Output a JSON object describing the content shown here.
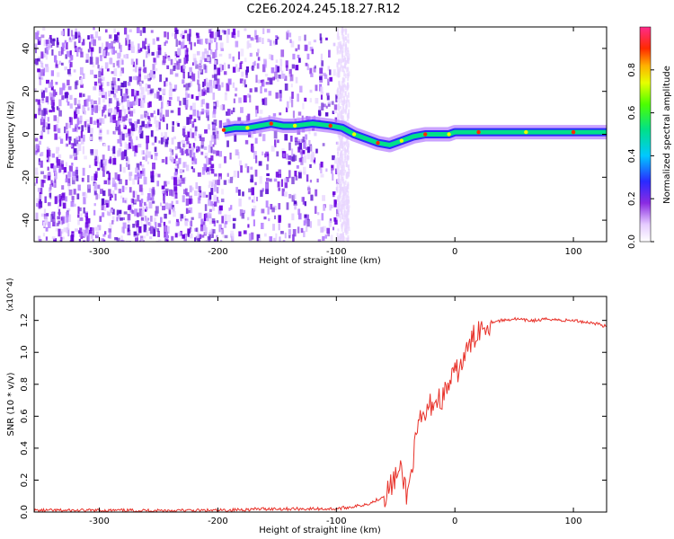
{
  "title": "C2E6.2024.245.18.27.R12",
  "chart_data": [
    {
      "type": "heatmap",
      "xlabel": "Height of straight line (km)",
      "ylabel": "Frequency (Hz)",
      "xlim": [
        -355,
        128
      ],
      "ylim": [
        -50,
        50
      ],
      "xticks": [
        -300,
        -200,
        -100,
        0,
        100
      ],
      "yticks": [
        -40,
        -20,
        0,
        20,
        40
      ],
      "colorbar": {
        "label": "Normalized spectral amplitude",
        "range": [
          0,
          1
        ],
        "ticks": [
          "0.0",
          "0.2",
          "0.4",
          "0.6",
          "0.8"
        ]
      },
      "ridge": {
        "x": [
          -195,
          -185,
          -175,
          -165,
          -155,
          -145,
          -135,
          -120,
          -105,
          -95,
          -85,
          -75,
          -65,
          -55,
          -45,
          -35,
          -25,
          -15,
          -5,
          0,
          20,
          40,
          60,
          80,
          100,
          128
        ],
        "y": [
          2,
          3,
          3,
          4,
          5,
          4,
          4,
          5,
          4,
          3,
          0,
          -2,
          -4,
          -5,
          -3,
          -1,
          0,
          0,
          0,
          1,
          1,
          1,
          1,
          1,
          1,
          1
        ]
      },
      "grid": false
    },
    {
      "type": "line",
      "xlabel": "Height of straight line (km)",
      "ylabel": "SNR (10 * v/v)",
      "yscale_note": "(x10^4)",
      "xlim": [
        -355,
        128
      ],
      "ylim": [
        0,
        1.35
      ],
      "xticks": [
        -300,
        -200,
        -100,
        0,
        100
      ],
      "yticks": [
        0.0,
        0.2,
        0.4,
        0.6,
        0.8,
        1.0,
        1.2
      ],
      "series": [
        {
          "color": "#e8322a",
          "x": [
            -355,
            -300,
            -250,
            -200,
            -160,
            -130,
            -110,
            -100,
            -90,
            -80,
            -70,
            -60,
            -55,
            -50,
            -45,
            -40,
            -35,
            -30,
            -25,
            -20,
            -15,
            -10,
            -5,
            0,
            5,
            10,
            15,
            20,
            25,
            30,
            40,
            50,
            60,
            70,
            80,
            90,
            100,
            110,
            120,
            128
          ],
          "y": [
            0.01,
            0.01,
            0.01,
            0.01,
            0.02,
            0.02,
            0.02,
            0.02,
            0.03,
            0.04,
            0.06,
            0.1,
            0.15,
            0.22,
            0.25,
            0.1,
            0.35,
            0.55,
            0.6,
            0.68,
            0.7,
            0.72,
            0.8,
            0.86,
            0.92,
            1.0,
            1.08,
            1.15,
            1.17,
            1.19,
            1.2,
            1.21,
            1.2,
            1.2,
            1.21,
            1.2,
            1.2,
            1.19,
            1.18,
            1.16
          ]
        }
      ],
      "grid": false
    }
  ]
}
